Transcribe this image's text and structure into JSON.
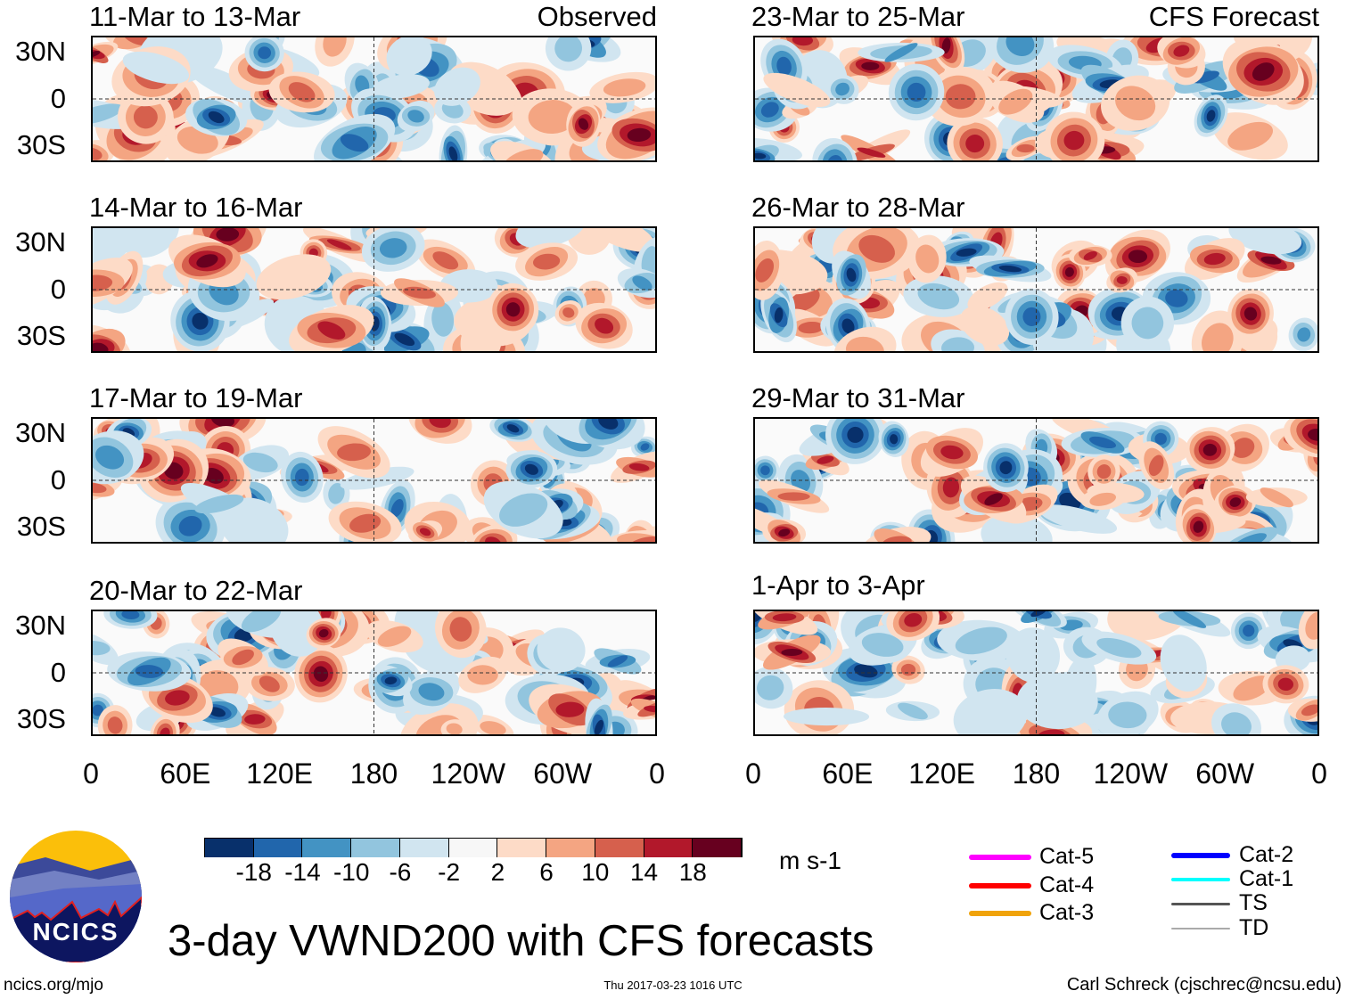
{
  "chart_data": {
    "type": "heatmap",
    "title": "3-day VWND200 with CFS forecasts",
    "variable": "VWND200",
    "units": "m s-1",
    "observed_label": "Observed",
    "forecast_label": "CFS Forecast",
    "panels": [
      {
        "title": "11-Mar to 13-Mar",
        "source": "Observed"
      },
      {
        "title": "14-Mar to 16-Mar",
        "source": "Observed"
      },
      {
        "title": "17-Mar to 19-Mar",
        "source": "Observed"
      },
      {
        "title": "20-Mar to 22-Mar",
        "source": "Observed"
      },
      {
        "title": "23-Mar to 25-Mar",
        "source": "CFS Forecast"
      },
      {
        "title": "26-Mar to 28-Mar",
        "source": "CFS Forecast"
      },
      {
        "title": "29-Mar to 31-Mar",
        "source": "CFS Forecast"
      },
      {
        "title": "1-Apr to 3-Apr",
        "source": "CFS Forecast"
      }
    ],
    "y_ticks": [
      "30N",
      "0",
      "30S"
    ],
    "x_ticks": [
      "0",
      "60E",
      "120E",
      "180",
      "120W",
      "60W",
      "0"
    ],
    "colorbar": {
      "levels": [
        "-18",
        "-14",
        "-10",
        "-6",
        "-2",
        "2",
        "6",
        "10",
        "14",
        "18"
      ],
      "colors": [
        "#08306b",
        "#2166ac",
        "#4393c3",
        "#92c5de",
        "#d1e5f0",
        "#f7f7f7",
        "#fddbc7",
        "#f4a582",
        "#d6604d",
        "#b2182b",
        "#67001f"
      ]
    },
    "legend": [
      {
        "label": "Cat-5",
        "color": "#ff00ff"
      },
      {
        "label": "Cat-4",
        "color": "#ff0000"
      },
      {
        "label": "Cat-3",
        "color": "#f0a30a"
      },
      {
        "label": "Cat-2",
        "color": "#0000ff"
      },
      {
        "label": "Cat-1",
        "color": "#00ffff"
      },
      {
        "label": "TS",
        "color": "#555555"
      },
      {
        "label": "TD",
        "color": "#aaaaaa"
      }
    ]
  },
  "footer": {
    "url": "ncics.org/mjo",
    "timestamp": "Thu 2017-03-23 1016 UTC",
    "author": "Carl Schreck (cjschrec@ncsu.edu)"
  },
  "logo": {
    "text": "NCICS"
  }
}
